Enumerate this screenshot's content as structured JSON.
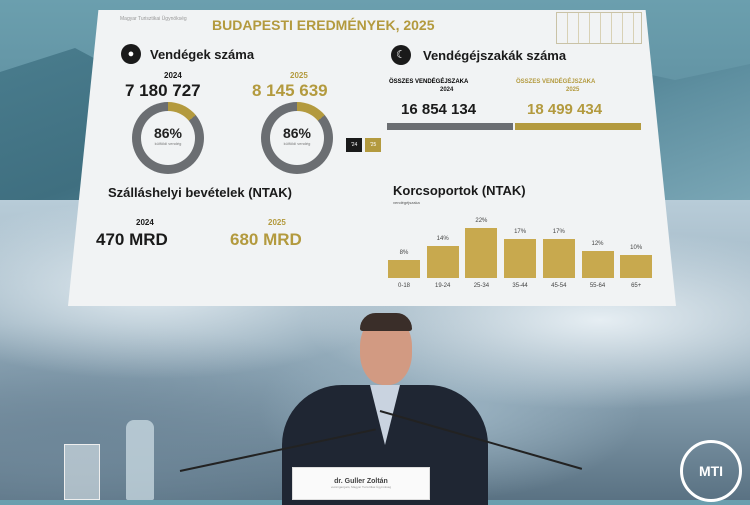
{
  "slide": {
    "title": "BUDAPESTI EREDMÉNYEK, 2025",
    "logo_text": "Magyar Turisztikai Ügynökség",
    "guests": {
      "heading": "Vendégek száma",
      "icon": "person-icon",
      "year_2024": "2024",
      "value_2024": "7 180 727",
      "year_2025": "2025",
      "value_2025": "8 145 639",
      "donut_2024": {
        "percent": "86%",
        "caption": "külföldi vendég",
        "foreign_share": 86
      },
      "donut_2025": {
        "percent": "86%",
        "caption": "külföldi vendég",
        "foreign_share": 86
      },
      "legend": [
        "'24",
        "'25"
      ]
    },
    "nights": {
      "heading": "Vendégéjszakák száma",
      "icon": "moon-icon",
      "label_2024": "ÖSSZES VENDÉGÉJSZAKA",
      "year_2024": "2024",
      "value_2024": "16 854 134",
      "label_2025": "ÖSSZES VENDÉGÉJSZAKA",
      "year_2025": "2025",
      "value_2025": "18 499 434"
    },
    "revenue": {
      "heading": "Szálláshelyi bevételek (NTAK)",
      "year_2024": "2024",
      "value_2024": "470 MRD",
      "year_2025": "2025",
      "value_2025": "680 MRD"
    },
    "colors": {
      "gold": "#b39a3e",
      "dark": "#1a1a1a",
      "grey": "#6b6e72"
    }
  },
  "chart_data": {
    "type": "bar",
    "title": "Korcsoportok (NTAK)",
    "subtitle": "vendégéjszaka",
    "categories": [
      "0-18",
      "19-24",
      "25-34",
      "35-44",
      "45-54",
      "55-64",
      "65+"
    ],
    "values": [
      8,
      14,
      22,
      17,
      17,
      12,
      10
    ],
    "labels": [
      "8%",
      "14%",
      "22%",
      "17%",
      "17%",
      "12%",
      "10%"
    ],
    "color": "#c8a94e"
  },
  "speaker": {
    "name": "dr. Guller Zoltán",
    "role": "vezérigazgató, Magyar Turisztikai Ügynökség"
  },
  "watermark": "MTI"
}
